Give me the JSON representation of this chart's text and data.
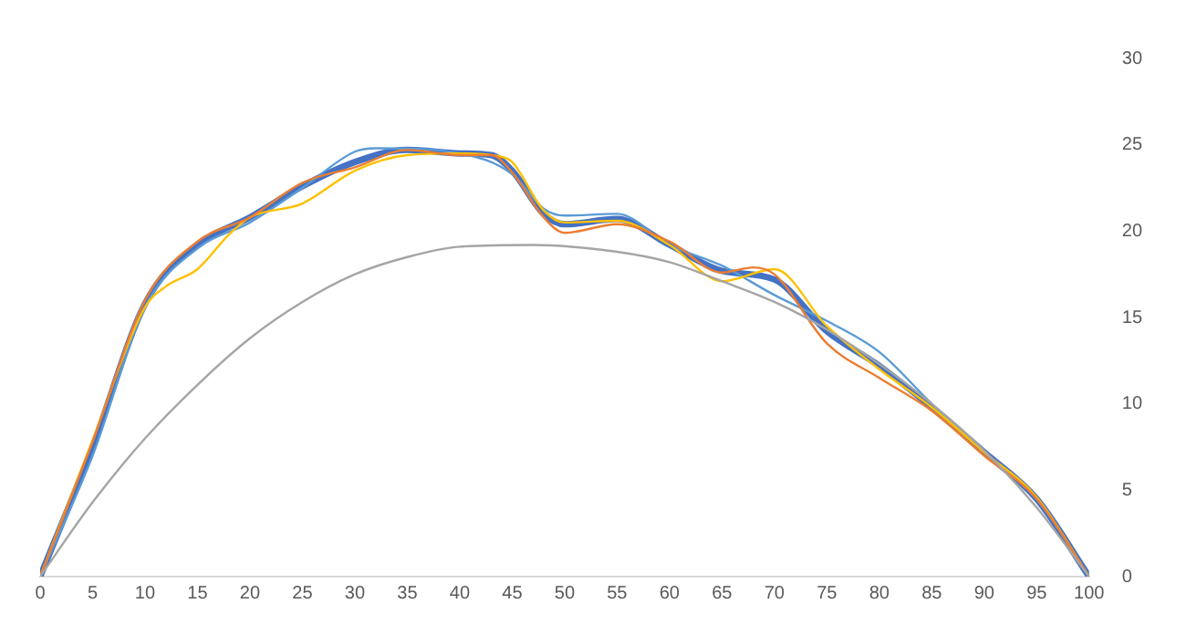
{
  "chart_data": {
    "type": "line",
    "xlim": [
      0,
      100
    ],
    "xticks": [
      0,
      5,
      10,
      15,
      20,
      25,
      30,
      35,
      40,
      45,
      50,
      55,
      60,
      65,
      70,
      75,
      80,
      85,
      90,
      95,
      100
    ],
    "ylim": [
      0,
      30
    ],
    "yticks": [
      0,
      5,
      10,
      15,
      20,
      25,
      30
    ],
    "grid": false,
    "legend": false,
    "marker": "none",
    "line_style": "solid",
    "series": [
      {
        "color": "#a5a5a5",
        "x": [
          0,
          5,
          10,
          15,
          20,
          25,
          30,
          35,
          40,
          47,
          55,
          60,
          65,
          70,
          75,
          80,
          85,
          90,
          95,
          100
        ],
        "values": [
          0,
          4.3,
          8,
          11.1,
          13.8,
          15.9,
          17.5,
          18.5,
          19.1,
          19.2,
          18.8,
          18.2,
          17.1,
          15.9,
          14.3,
          12.3,
          10,
          7.3,
          4,
          0
        ]
      },
      {
        "color": "#ed7d31",
        "x": [
          0,
          5,
          10,
          15,
          20,
          25,
          30,
          35,
          40,
          43,
          45,
          48,
          50,
          55,
          60,
          65,
          68,
          70,
          75,
          80,
          85,
          90,
          95,
          100
        ],
        "values": [
          0,
          7.8,
          16,
          19.4,
          20.8,
          22.8,
          23.7,
          24.7,
          24.4,
          24.4,
          23.4,
          20.8,
          19.9,
          20.4,
          19.4,
          17.6,
          17.9,
          17.5,
          13.5,
          11.5,
          9.6,
          7,
          4.5,
          0
        ]
      },
      {
        "color": "#ffc000",
        "x": [
          0,
          5,
          10,
          12,
          15,
          18,
          20,
          25,
          30,
          35,
          40,
          44,
          45,
          48,
          50,
          55,
          60,
          65,
          70,
          75,
          80,
          85,
          90,
          95,
          100
        ],
        "values": [
          0,
          7.9,
          15.6,
          16.8,
          17.8,
          19.8,
          20.8,
          21.6,
          23.5,
          24.4,
          24.5,
          24.3,
          24,
          21.2,
          20.5,
          20.6,
          19.2,
          17.1,
          17.8,
          14.5,
          12,
          9.8,
          7.2,
          4.6,
          0
        ]
      },
      {
        "color": "#5b9bd5",
        "x": [
          0,
          5,
          10,
          15,
          20,
          25,
          30,
          32,
          40,
          45,
          48,
          50,
          55,
          60,
          65,
          70,
          75,
          80,
          85,
          90,
          95,
          100
        ],
        "values": [
          0,
          7,
          15.6,
          19,
          20.5,
          22.5,
          24.6,
          24.8,
          24.5,
          23.3,
          21.3,
          20.9,
          21,
          19.2,
          18,
          16.3,
          14.8,
          13,
          10,
          7.2,
          4.5,
          0
        ]
      },
      {
        "color": "#4472c4",
        "x": [
          0,
          5,
          10,
          15,
          20,
          25,
          30,
          35,
          40,
          43,
          45,
          48,
          50,
          55,
          60,
          65,
          70,
          75,
          80,
          85,
          90,
          95,
          100
        ],
        "values": [
          0,
          7.5,
          15.8,
          19.2,
          20.8,
          22.6,
          24,
          24.7,
          24.5,
          24.4,
          23.5,
          21,
          20.4,
          20.7,
          19.2,
          17.7,
          17.2,
          14.2,
          12.2,
          9.8,
          7.2,
          4.5,
          0
        ]
      }
    ]
  }
}
